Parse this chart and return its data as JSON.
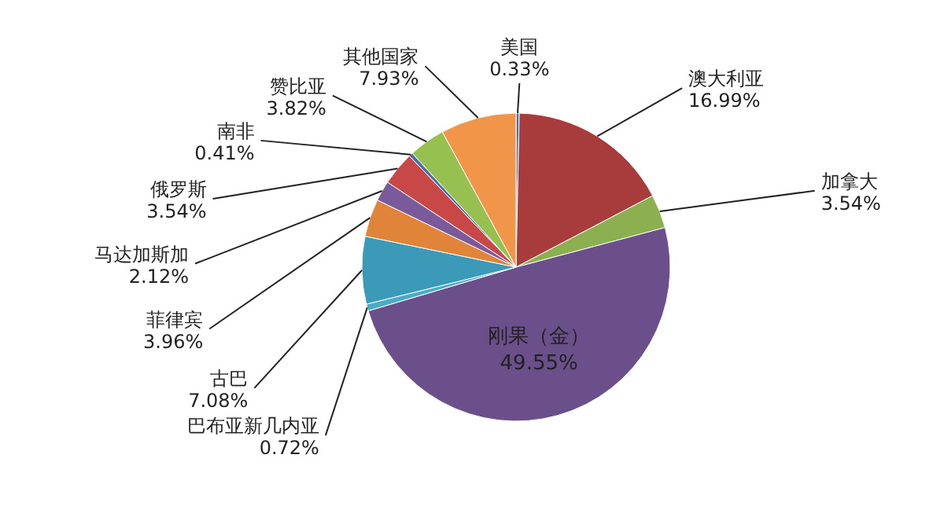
{
  "chart_data": {
    "type": "pie",
    "categories": [
      "美国",
      "澳大利亚",
      "加拿大",
      "刚果（金）",
      "巴布亚新几内亚",
      "古巴",
      "菲律宾",
      "马达加斯加",
      "俄罗斯",
      "南非",
      "赞比亚",
      "其他国家"
    ],
    "values": [
      0.33,
      16.99,
      3.54,
      49.55,
      0.72,
      7.08,
      3.96,
      2.12,
      3.54,
      0.41,
      3.82,
      7.93
    ],
    "value_labels": [
      "0.33%",
      "16.99%",
      "3.54%",
      "49.55%",
      "0.72%",
      "7.08%",
      "3.96%",
      "2.12%",
      "3.54%",
      "0.41%",
      "3.82%",
      "7.93%"
    ],
    "colors": [
      "#4a6fa5",
      "#a83c3c",
      "#8cb050",
      "#6a4f8a",
      "#4bacc6",
      "#3a9ab8",
      "#e0843a",
      "#7a5a9a",
      "#c84848",
      "#4a70a8",
      "#96c050",
      "#f0954a"
    ]
  }
}
